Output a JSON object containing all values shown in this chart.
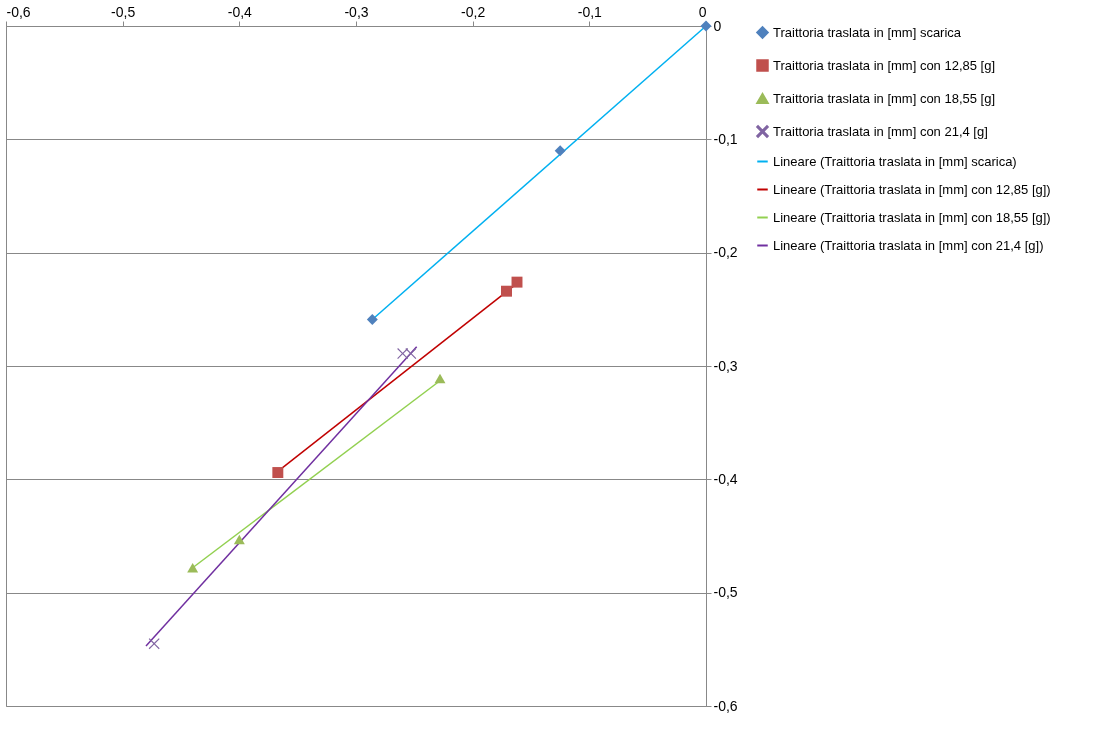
{
  "chart_data": {
    "type": "scatter",
    "xlim": [
      -0.6,
      0
    ],
    "ylim": [
      -0.6,
      0
    ],
    "xticks": [
      {
        "value": -0.6,
        "label": "-0,6"
      },
      {
        "value": -0.5,
        "label": "-0,5"
      },
      {
        "value": -0.4,
        "label": "-0,4"
      },
      {
        "value": -0.3,
        "label": "-0,3"
      },
      {
        "value": -0.2,
        "label": "-0,2"
      },
      {
        "value": -0.1,
        "label": "-0,1"
      },
      {
        "value": 0,
        "label": "0"
      }
    ],
    "yticks": [
      {
        "value": -0.6,
        "label": "-0,6"
      },
      {
        "value": -0.5,
        "label": "-0,5"
      },
      {
        "value": -0.4,
        "label": "-0,4"
      },
      {
        "value": -0.3,
        "label": "-0,3"
      },
      {
        "value": -0.2,
        "label": "-0,2"
      },
      {
        "value": -0.1,
        "label": "-0,1"
      },
      {
        "value": 0,
        "label": "0"
      }
    ],
    "grid": "y",
    "legend": "right",
    "series": [
      {
        "name": "Traittoria traslata in [mm] scarica",
        "marker": "diamond",
        "color": "#4f81bd",
        "x": [
          0,
          -0.125,
          -0.286
        ],
        "values": [
          0,
          -0.11,
          -0.259
        ]
      },
      {
        "name": "Traittoria traslata in [mm] con 12,85 [g]",
        "marker": "square",
        "color": "#c0504d",
        "x": [
          -0.162,
          -0.171,
          -0.367
        ],
        "values": [
          -0.226,
          -0.234,
          -0.394
        ]
      },
      {
        "name": "Traittoria traslata in [mm] con 18,55 [g]",
        "marker": "triangle",
        "color": "#9bbb59",
        "x": [
          -0.228,
          -0.4,
          -0.44
        ],
        "values": [
          -0.311,
          -0.453,
          -0.478
        ]
      },
      {
        "name": "Traittoria traslata in [mm] con 21,4 [g]",
        "marker": "cross",
        "color": "#8064a2",
        "x": [
          -0.26,
          -0.253,
          -0.473
        ],
        "values": [
          -0.289,
          -0.289,
          -0.545
        ]
      },
      {
        "name": "Lineare (Traittoria traslata in [mm] scarica)",
        "type": "line",
        "marker": "none",
        "color": "#00b0f0",
        "x": [
          -0.286,
          0
        ],
        "values": [
          -0.259,
          0
        ]
      },
      {
        "name": "Lineare (Traittoria traslata in [mm] con 12,85 [g])",
        "type": "line",
        "marker": "none",
        "color": "#c00000",
        "x": [
          -0.367,
          -0.163
        ],
        "values": [
          -0.393,
          -0.228
        ]
      },
      {
        "name": "Lineare (Traittoria traslata in [mm] con 18,55 [g])",
        "type": "line",
        "marker": "none",
        "color": "#92d050",
        "x": [
          -0.44,
          -0.228
        ],
        "values": [
          -0.478,
          -0.313
        ]
      },
      {
        "name": "Lineare (Traittoria traslata in [mm] con 21,4 [g])",
        "type": "line",
        "marker": "none",
        "color": "#7030a0",
        "x": [
          -0.48,
          -0.248
        ],
        "values": [
          -0.547,
          -0.283
        ]
      }
    ]
  }
}
